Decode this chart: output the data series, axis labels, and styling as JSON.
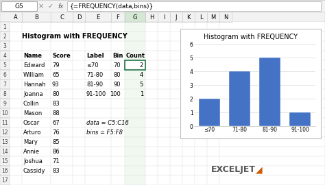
{
  "title": "Histogram with FREQUENCY",
  "spreadsheet_title": "Histogram with FREQUENCY",
  "formula_bar_text": "{=FREQUENCY(data,bins)}",
  "cell_ref": "G5",
  "col_headers": [
    "A",
    "B",
    "C",
    "D",
    "E",
    "F",
    "G",
    "H",
    "I",
    "J",
    "K",
    "L",
    "M",
    "N"
  ],
  "row_headers": [
    "1",
    "2",
    "3",
    "4",
    "5",
    "6",
    "7",
    "8",
    "9",
    "10",
    "11",
    "12",
    "13",
    "14",
    "15",
    "16",
    "17"
  ],
  "names": [
    "Edward",
    "William",
    "Hannah",
    "Joanna",
    "Collin",
    "Mason",
    "Oscar",
    "Arturo",
    "Mary",
    "Annie",
    "Joshua",
    "Cassidy"
  ],
  "scores": [
    79,
    65,
    93,
    80,
    83,
    88,
    67,
    76,
    85,
    86,
    71,
    83
  ],
  "labels": [
    "≤70",
    "71-80",
    "81-90",
    "91-100"
  ],
  "bins": [
    70,
    80,
    90,
    100
  ],
  "counts": [
    2,
    4,
    5,
    1
  ],
  "note_line1": "data = C5:C16",
  "note_line2": "bins = F5:F8",
  "bar_color": "#4472C4",
  "chart_bg": "#ffffff",
  "chart_border": "#c0c0c0",
  "grid_color": "#d9d9d9",
  "header_bg": "#f2f2f2",
  "selected_col_bg": "#e6f0e6",
  "selected_cell_bg": "#ffffff",
  "cell_border": "#d0d0d0",
  "formula_bar_bg": "#ffffff",
  "bg_color": "#ffffff",
  "exceljet_color": "#404040",
  "exceljet_orange": "#d05a00",
  "figsize": [
    4.74,
    2.7
  ],
  "dpi": 100
}
